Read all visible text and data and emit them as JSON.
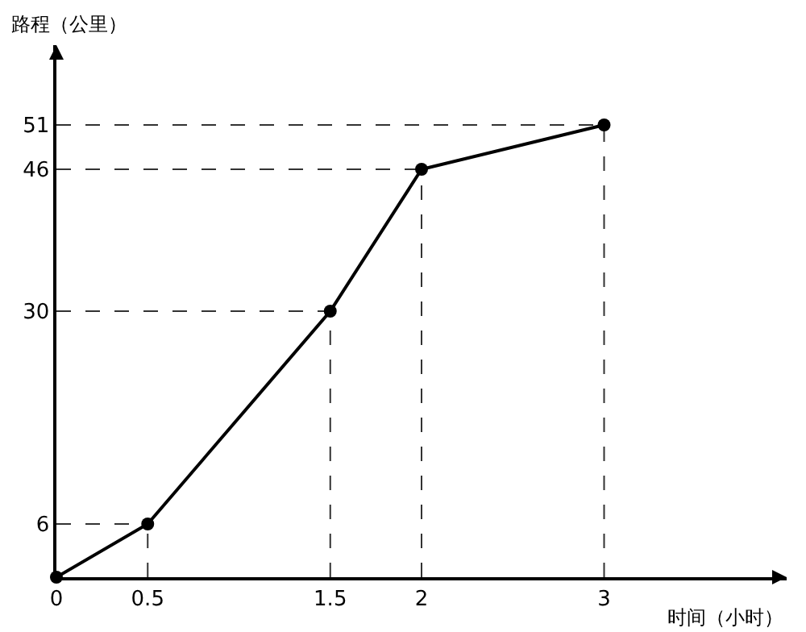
{
  "chart_data": {
    "type": "line",
    "xlabel": "时间（小时）",
    "ylabel": "路程（公里）",
    "x": [
      0,
      0.5,
      1.5,
      2,
      3
    ],
    "series": [
      {
        "color": "#000000",
        "values": [
          0,
          6,
          30,
          46,
          51
        ]
      }
    ],
    "xlim": [
      0,
      4
    ],
    "ylim": [
      0,
      60
    ],
    "xticks": [
      0,
      0.5,
      1.5,
      2,
      3
    ],
    "yticks": [
      6,
      30,
      46,
      51
    ],
    "marker": "circle",
    "line_style": "solid",
    "grid": false,
    "ref_lines": [
      {
        "axis": "x",
        "value": 0.5,
        "color": "#333333",
        "line_style": "dashed"
      },
      {
        "axis": "x",
        "value": 1.5,
        "color": "#333333",
        "line_style": "dashed"
      },
      {
        "axis": "x",
        "value": 2,
        "color": "#333333",
        "line_style": "dashed"
      },
      {
        "axis": "x",
        "value": 3,
        "color": "#333333",
        "line_style": "dashed"
      },
      {
        "axis": "y",
        "value": 6,
        "color": "#333333",
        "line_style": "dashed"
      },
      {
        "axis": "y",
        "value": 30,
        "color": "#333333",
        "line_style": "dashed"
      },
      {
        "axis": "y",
        "value": 46,
        "color": "#333333",
        "line_style": "dashed"
      },
      {
        "axis": "y",
        "value": 51,
        "color": "#333333",
        "line_style": "dashed"
      }
    ],
    "legend": false
  }
}
